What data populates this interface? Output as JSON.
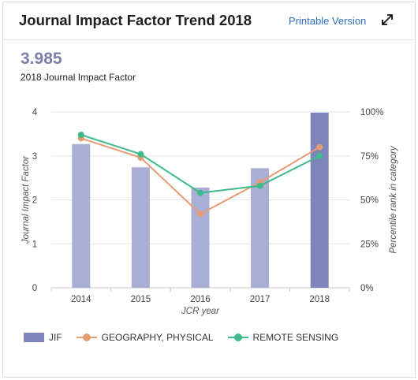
{
  "header": {
    "title": "Journal Impact Factor Trend 2018",
    "printable_label": "Printable Version",
    "expand_icon": "expand-icon"
  },
  "metric": {
    "value": "3.985",
    "label": "2018 Journal Impact Factor"
  },
  "colors": {
    "bar": "#a9aed4",
    "bar_highlight": "#7f84bb",
    "geography": "#e89b72",
    "remote": "#3dbb8a",
    "grid": "#e6e6e6"
  },
  "chart_data": {
    "type": "bar",
    "categories": [
      "2014",
      "2015",
      "2016",
      "2017",
      "2018"
    ],
    "series": [
      {
        "name": "JIF",
        "type": "bar",
        "axis": "left",
        "values": [
          3.27,
          2.74,
          2.28,
          2.72,
          3.985
        ]
      },
      {
        "name": "GEOGRAPHY, PHYSICAL",
        "type": "line",
        "axis": "right",
        "values": [
          85,
          74,
          42,
          60,
          80
        ]
      },
      {
        "name": "REMOTE SENSING",
        "type": "line",
        "axis": "right",
        "values": [
          87,
          76,
          54,
          58,
          75
        ]
      }
    ],
    "xlabel": "JCR year",
    "ylabel": "Journal Impact Factor",
    "y2label": "Percentile rank in category",
    "ylim": [
      0,
      4
    ],
    "y2lim": [
      0,
      100
    ],
    "yticks": [
      "0",
      "1",
      "2",
      "3",
      "4"
    ],
    "y2ticks": [
      "0%",
      "25%",
      "50%",
      "75%",
      "100%"
    ],
    "highlight_category": "2018",
    "grid": true,
    "legend_position": "bottom-left"
  }
}
